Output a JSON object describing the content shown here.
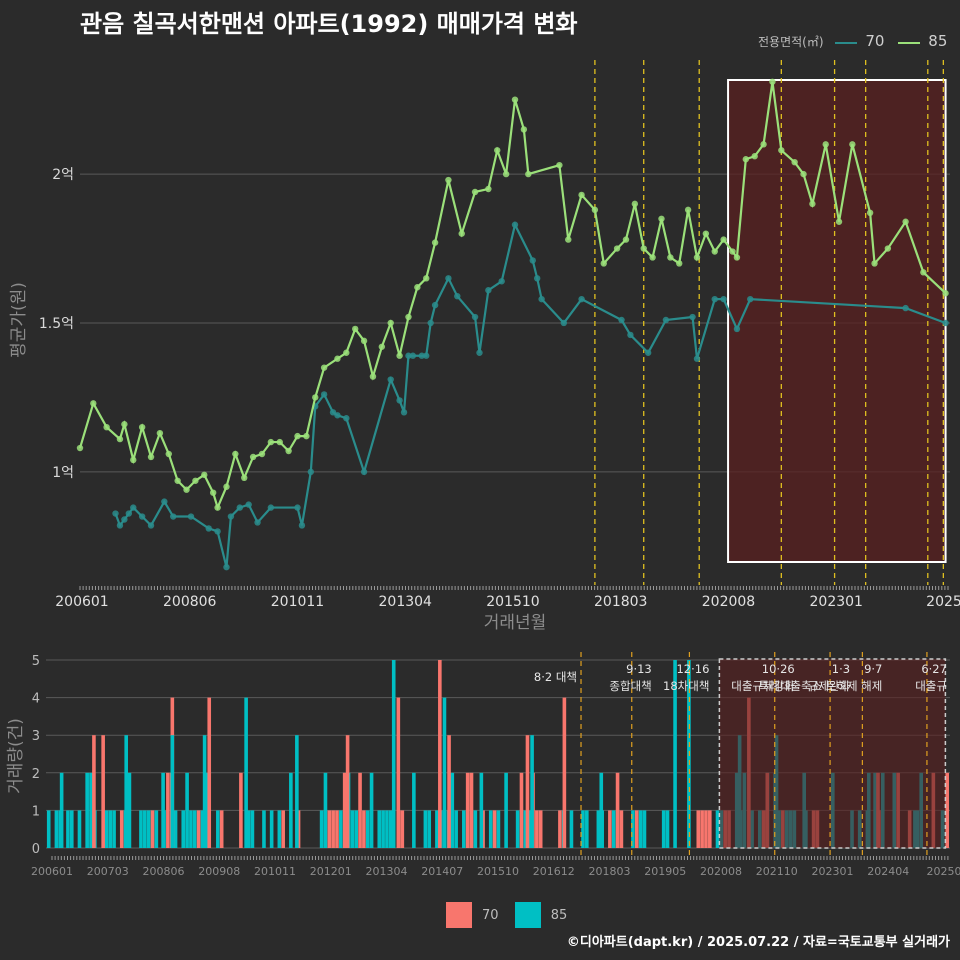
{
  "title": "관음 칠곡서한맨션 아파트(1992) 매매가격 변화",
  "footer": "©디아파트(dapt.kr) / 2025.07.22 / 자료=국토교통부 실거래가",
  "colors": {
    "background": "#2b2b2b",
    "series70_line": "#2a8c8c",
    "series85_line": "#9be07a",
    "bar70": "#f8766d",
    "bar85": "#00bfc4",
    "policy": "#e0c020",
    "highlight": "#5a2020"
  },
  "chart_data": [
    {
      "type": "line",
      "ylabel": "평균가(원)",
      "xlabel": "거래년월",
      "x_ticks": [
        "200601",
        "200806",
        "201011",
        "201304",
        "201510",
        "201803",
        "202008",
        "202301",
        "2025"
      ],
      "y_ticks": [
        {
          "value": 1.0,
          "label": "1억"
        },
        {
          "value": 1.5,
          "label": "1.5억"
        },
        {
          "value": 2.0,
          "label": "2억"
        }
      ],
      "ylim": [
        0.62,
        2.4
      ],
      "xlim": [
        2006.0,
        2025.6
      ],
      "legend": {
        "title": "전용면적(㎡)",
        "entries": [
          "70",
          "85"
        ],
        "position": "top-right"
      },
      "policy_dates": [
        2017.6,
        2018.7,
        2019.95,
        2021.8,
        2023.0,
        2023.7,
        2025.1,
        2025.45
      ],
      "highlight_range": [
        2020.6,
        2025.5
      ],
      "series": [
        {
          "name": "70",
          "points": [
            [
              2006.8,
              0.86
            ],
            [
              2006.9,
              0.82
            ],
            [
              2007.0,
              0.84
            ],
            [
              2007.1,
              0.86
            ],
            [
              2007.2,
              0.88
            ],
            [
              2007.4,
              0.85
            ],
            [
              2007.6,
              0.82
            ],
            [
              2007.9,
              0.9
            ],
            [
              2008.1,
              0.85
            ],
            [
              2008.5,
              0.85
            ],
            [
              2008.9,
              0.81
            ],
            [
              2009.1,
              0.8
            ],
            [
              2009.3,
              0.68
            ],
            [
              2009.4,
              0.85
            ],
            [
              2009.6,
              0.88
            ],
            [
              2009.8,
              0.89
            ],
            [
              2010.0,
              0.83
            ],
            [
              2010.3,
              0.88
            ],
            [
              2010.9,
              0.88
            ],
            [
              2011.0,
              0.82
            ],
            [
              2011.2,
              1.0
            ],
            [
              2011.3,
              1.22
            ],
            [
              2011.5,
              1.26
            ],
            [
              2011.7,
              1.2
            ],
            [
              2011.8,
              1.19
            ],
            [
              2012.0,
              1.18
            ],
            [
              2012.4,
              1.0
            ],
            [
              2013.0,
              1.31
            ],
            [
              2013.2,
              1.24
            ],
            [
              2013.3,
              1.2
            ],
            [
              2013.4,
              1.39
            ],
            [
              2013.5,
              1.39
            ],
            [
              2013.7,
              1.39
            ],
            [
              2013.8,
              1.39
            ],
            [
              2013.9,
              1.5
            ],
            [
              2014.0,
              1.56
            ],
            [
              2014.3,
              1.65
            ],
            [
              2014.5,
              1.59
            ],
            [
              2014.9,
              1.52
            ],
            [
              2015.0,
              1.4
            ],
            [
              2015.2,
              1.61
            ],
            [
              2015.5,
              1.64
            ],
            [
              2015.8,
              1.83
            ],
            [
              2016.2,
              1.71
            ],
            [
              2016.3,
              1.65
            ],
            [
              2016.4,
              1.58
            ],
            [
              2016.9,
              1.5
            ],
            [
              2017.3,
              1.58
            ],
            [
              2018.2,
              1.51
            ],
            [
              2018.4,
              1.46
            ],
            [
              2018.8,
              1.4
            ],
            [
              2019.2,
              1.51
            ],
            [
              2019.8,
              1.52
            ],
            [
              2019.9,
              1.38
            ],
            [
              2020.3,
              1.58
            ],
            [
              2020.5,
              1.58
            ],
            [
              2020.8,
              1.48
            ],
            [
              2021.1,
              1.58
            ],
            [
              2024.6,
              1.55
            ],
            [
              2025.5,
              1.5
            ]
          ]
        },
        {
          "name": "85",
          "points": [
            [
              2006.0,
              1.08
            ],
            [
              2006.3,
              1.23
            ],
            [
              2006.6,
              1.15
            ],
            [
              2006.9,
              1.11
            ],
            [
              2007.0,
              1.16
            ],
            [
              2007.2,
              1.04
            ],
            [
              2007.4,
              1.15
            ],
            [
              2007.6,
              1.05
            ],
            [
              2007.8,
              1.13
            ],
            [
              2008.0,
              1.06
            ],
            [
              2008.2,
              0.97
            ],
            [
              2008.4,
              0.94
            ],
            [
              2008.6,
              0.97
            ],
            [
              2008.8,
              0.99
            ],
            [
              2009.0,
              0.93
            ],
            [
              2009.1,
              0.88
            ],
            [
              2009.3,
              0.95
            ],
            [
              2009.5,
              1.06
            ],
            [
              2009.7,
              0.98
            ],
            [
              2009.9,
              1.05
            ],
            [
              2010.1,
              1.06
            ],
            [
              2010.3,
              1.1
            ],
            [
              2010.5,
              1.1
            ],
            [
              2010.7,
              1.07
            ],
            [
              2010.9,
              1.12
            ],
            [
              2011.1,
              1.12
            ],
            [
              2011.3,
              1.25
            ],
            [
              2011.5,
              1.35
            ],
            [
              2011.8,
              1.38
            ],
            [
              2012.0,
              1.4
            ],
            [
              2012.2,
              1.48
            ],
            [
              2012.4,
              1.44
            ],
            [
              2012.6,
              1.32
            ],
            [
              2012.8,
              1.42
            ],
            [
              2013.0,
              1.5
            ],
            [
              2013.2,
              1.39
            ],
            [
              2013.4,
              1.52
            ],
            [
              2013.6,
              1.62
            ],
            [
              2013.8,
              1.65
            ],
            [
              2014.0,
              1.77
            ],
            [
              2014.3,
              1.98
            ],
            [
              2014.6,
              1.8
            ],
            [
              2014.9,
              1.94
            ],
            [
              2015.2,
              1.95
            ],
            [
              2015.4,
              2.08
            ],
            [
              2015.6,
              2.0
            ],
            [
              2015.8,
              2.25
            ],
            [
              2016.0,
              2.15
            ],
            [
              2016.1,
              2.0
            ],
            [
              2016.8,
              2.03
            ],
            [
              2017.0,
              1.78
            ],
            [
              2017.3,
              1.93
            ],
            [
              2017.6,
              1.88
            ],
            [
              2017.8,
              1.7
            ],
            [
              2018.1,
              1.75
            ],
            [
              2018.3,
              1.78
            ],
            [
              2018.5,
              1.9
            ],
            [
              2018.7,
              1.75
            ],
            [
              2018.9,
              1.72
            ],
            [
              2019.1,
              1.85
            ],
            [
              2019.3,
              1.72
            ],
            [
              2019.5,
              1.7
            ],
            [
              2019.7,
              1.88
            ],
            [
              2019.9,
              1.72
            ],
            [
              2020.1,
              1.8
            ],
            [
              2020.3,
              1.74
            ],
            [
              2020.5,
              1.78
            ],
            [
              2020.7,
              1.74
            ],
            [
              2020.8,
              1.72
            ],
            [
              2021.0,
              2.05
            ],
            [
              2021.2,
              2.06
            ],
            [
              2021.4,
              2.1
            ],
            [
              2021.6,
              2.31
            ],
            [
              2021.8,
              2.08
            ],
            [
              2022.1,
              2.04
            ],
            [
              2022.3,
              2.0
            ],
            [
              2022.5,
              1.9
            ],
            [
              2022.8,
              2.1
            ],
            [
              2023.1,
              1.84
            ],
            [
              2023.4,
              2.1
            ],
            [
              2023.8,
              1.87
            ],
            [
              2023.9,
              1.7
            ],
            [
              2024.2,
              1.75
            ],
            [
              2024.6,
              1.84
            ],
            [
              2025.0,
              1.67
            ],
            [
              2025.5,
              1.6
            ]
          ]
        }
      ]
    },
    {
      "type": "bar",
      "ylabel": "거래량(건)",
      "x_ticks": [
        "200601",
        "200703",
        "200806",
        "200908",
        "201011",
        "201201",
        "201304",
        "201407",
        "201510",
        "201612",
        "201803",
        "201905",
        "202008",
        "202110",
        "202301",
        "202404",
        "20250"
      ],
      "y_ticks": [
        0,
        1,
        2,
        3,
        4,
        5
      ],
      "ylim": [
        0,
        5
      ],
      "xlim": [
        2006.0,
        2025.6
      ],
      "legend": {
        "entries": [
          "70",
          "85"
        ],
        "position": "bottom"
      },
      "policy_annotations": [
        {
          "x": 2017.6,
          "label": "8·2 대책"
        },
        {
          "x": 2018.7,
          "label": "9·13 종합대책"
        },
        {
          "x": 2019.95,
          "label": "12·16 18차대책"
        },
        {
          "x": 2021.8,
          "label": "10·26 대출규제강화"
        },
        {
          "x": 2023.0,
          "label": "1·3 규제완화"
        },
        {
          "x": 2023.7,
          "label": "9·7 특례대출축소 토허제 해제"
        },
        {
          "x": 2025.1,
          "label": "6·27 대출규"
        }
      ],
      "highlight_range": [
        2020.6,
        2025.5
      ],
      "series": [
        {
          "name": "70",
          "values": [
            [
              2007.0,
              3
            ],
            [
              2007.2,
              3
            ],
            [
              2008.7,
              4
            ],
            [
              2009.5,
              4
            ],
            [
              2012.5,
              3
            ],
            [
              2013.6,
              4
            ],
            [
              2014.5,
              5
            ],
            [
              2014.7,
              3
            ],
            [
              2016.4,
              3
            ],
            [
              2017.2,
              4
            ],
            [
              2021.2,
              4
            ],
            [
              2021.6,
              2
            ],
            [
              2024.0,
              2
            ],
            [
              2025.2,
              2
            ],
            [
              2025.5,
              2
            ]
          ]
        },
        {
          "name": "85",
          "values": [
            [
              2006.3,
              2
            ],
            [
              2007.7,
              3
            ],
            [
              2008.5,
              2
            ],
            [
              2008.7,
              3
            ],
            [
              2009.4,
              3
            ],
            [
              2010.3,
              4
            ],
            [
              2011.4,
              3
            ],
            [
              2013.5,
              5
            ],
            [
              2014.6,
              4
            ],
            [
              2015.4,
              2
            ],
            [
              2016.5,
              3
            ],
            [
              2018.0,
              2
            ],
            [
              2019.6,
              5
            ],
            [
              2019.9,
              5
            ],
            [
              2021.0,
              3
            ],
            [
              2021.8,
              3
            ],
            [
              2022.4,
              2
            ],
            [
              2023.8,
              2
            ],
            [
              2024.8,
              1
            ],
            [
              2025.4,
              1
            ]
          ]
        }
      ]
    }
  ]
}
